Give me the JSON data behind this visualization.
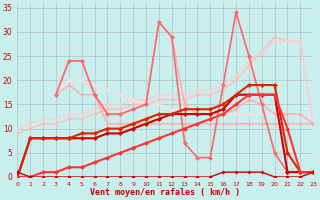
{
  "xlabel": "Vent moyen/en rafales ( km/h )",
  "bg_color": "#c8eeee",
  "grid_color": "#aaaaaa",
  "xlim": [
    0,
    23
  ],
  "ylim": [
    0,
    36
  ],
  "yticks": [
    0,
    5,
    10,
    15,
    20,
    25,
    30,
    35
  ],
  "xticks": [
    0,
    1,
    2,
    3,
    4,
    5,
    6,
    7,
    8,
    9,
    10,
    11,
    12,
    13,
    14,
    15,
    16,
    17,
    18,
    19,
    20,
    21,
    22,
    23
  ],
  "lines": [
    {
      "x": [
        0,
        1,
        2,
        3,
        4,
        5,
        6,
        7,
        8,
        9,
        10,
        11,
        12,
        13,
        14,
        15,
        16,
        17,
        18,
        19,
        20,
        21,
        22,
        23
      ],
      "y": [
        9,
        10,
        11,
        11,
        12,
        12,
        13,
        14,
        14,
        15,
        15,
        16,
        16,
        16,
        17,
        17,
        18,
        20,
        23,
        26,
        29,
        28,
        28,
        11
      ],
      "color": "#ffbbbb",
      "lw": 1.0,
      "marker": "D",
      "ms": 2.0
    },
    {
      "x": [
        0,
        1,
        2,
        3,
        4,
        5,
        6,
        7,
        8,
        9,
        10,
        11,
        12,
        13,
        14,
        15,
        16,
        17,
        18,
        19,
        20,
        21,
        22,
        23
      ],
      "y": [
        10,
        11,
        12,
        12,
        13,
        13,
        14,
        15,
        15,
        16,
        16,
        17,
        17,
        17,
        18,
        18,
        19,
        21,
        24,
        26,
        28,
        28,
        28,
        11
      ],
      "color": "#ffcccc",
      "lw": 1.0,
      "marker": "D",
      "ms": 2.0
    },
    {
      "x": [
        3,
        4,
        5,
        6,
        7,
        8,
        9,
        10,
        11,
        12,
        13,
        14,
        15,
        16,
        17,
        18,
        19,
        20,
        21,
        22,
        23
      ],
      "y": [
        17,
        19,
        17,
        17,
        11,
        11,
        11,
        11,
        11,
        11,
        11,
        11,
        11,
        11,
        11,
        11,
        11,
        11,
        11,
        11,
        11
      ],
      "color": "#ffaaaa",
      "lw": 1.0,
      "marker": "D",
      "ms": 2.0
    },
    {
      "x": [
        3,
        4,
        5,
        6,
        7,
        8,
        9,
        10,
        11,
        12,
        13,
        14,
        15,
        16,
        17,
        18,
        19,
        20,
        21,
        22,
        23
      ],
      "y": [
        17,
        20,
        20,
        19,
        18,
        17,
        16,
        15,
        15,
        14,
        14,
        13,
        13,
        13,
        13,
        13,
        13,
        13,
        13,
        13,
        12
      ],
      "color": "#ffdddd",
      "lw": 1.0,
      "marker": "D",
      "ms": 2.0
    },
    {
      "x": [
        3,
        4,
        5,
        6,
        7,
        8,
        9,
        10,
        11,
        12,
        13,
        14,
        15,
        16,
        17,
        18,
        19,
        20,
        21,
        22,
        23
      ],
      "y": [
        17,
        24,
        24,
        17,
        13,
        13,
        14,
        15,
        32,
        29,
        15,
        13,
        13,
        13,
        14,
        16,
        15,
        13,
        13,
        13,
        11
      ],
      "color": "#ffaaaa",
      "lw": 1.0,
      "marker": "D",
      "ms": 2.0
    },
    {
      "x": [
        3,
        4,
        5,
        6,
        7,
        8,
        9,
        10,
        11,
        12,
        13,
        14,
        15,
        16,
        17,
        18,
        19,
        20,
        21,
        22,
        23
      ],
      "y": [
        17,
        24,
        24,
        17,
        13,
        13,
        14,
        15,
        32,
        29,
        7,
        4,
        4,
        19,
        34,
        25,
        15,
        5,
        1,
        1,
        1
      ],
      "color": "#ff6666",
      "lw": 1.2,
      "marker": "D",
      "ms": 2.5
    },
    {
      "x": [
        0,
        1,
        2,
        3,
        4,
        5,
        6,
        7,
        8,
        9,
        10,
        11,
        12,
        13,
        14,
        15,
        16,
        17,
        18,
        19,
        20,
        21,
        22,
        23
      ],
      "y": [
        0,
        8,
        8,
        8,
        8,
        8,
        8,
        9,
        9,
        10,
        11,
        12,
        13,
        13,
        13,
        13,
        14,
        17,
        17,
        17,
        17,
        1,
        1,
        1
      ],
      "color": "#cc0000",
      "lw": 1.5,
      "marker": "D",
      "ms": 2.5
    },
    {
      "x": [
        0,
        1,
        2,
        3,
        4,
        5,
        6,
        7,
        8,
        9,
        10,
        11,
        12,
        13,
        14,
        15,
        16,
        17,
        18,
        19,
        20,
        21,
        22,
        23
      ],
      "y": [
        0,
        8,
        8,
        8,
        8,
        9,
        9,
        10,
        10,
        11,
        12,
        13,
        13,
        14,
        14,
        14,
        15,
        17,
        19,
        19,
        19,
        5,
        1,
        1
      ],
      "color": "#dd2200",
      "lw": 1.5,
      "marker": "D",
      "ms": 2.5
    },
    {
      "x": [
        0,
        1,
        2,
        3,
        4,
        5,
        6,
        7,
        8,
        9,
        10,
        11,
        12,
        13,
        14,
        15,
        16,
        17,
        18,
        19,
        20,
        21,
        22,
        23
      ],
      "y": [
        0,
        0,
        1,
        1,
        2,
        2,
        3,
        4,
        5,
        6,
        7,
        8,
        9,
        10,
        11,
        12,
        13,
        15,
        17,
        17,
        17,
        10,
        1,
        1
      ],
      "color": "#ff3333",
      "lw": 1.5,
      "marker": "D",
      "ms": 2.5
    },
    {
      "x": [
        0,
        1,
        2,
        3,
        4,
        5,
        6,
        7,
        8,
        9,
        10,
        11,
        12,
        13,
        14,
        15,
        16,
        17,
        18,
        19,
        20,
        21,
        22,
        23
      ],
      "y": [
        1,
        0,
        0,
        0,
        0,
        0,
        0,
        0,
        0,
        0,
        0,
        0,
        0,
        0,
        0,
        0,
        1,
        1,
        1,
        1,
        0,
        0,
        0,
        1
      ],
      "color": "#cc0000",
      "lw": 1.0,
      "marker": "D",
      "ms": 2.0
    }
  ]
}
